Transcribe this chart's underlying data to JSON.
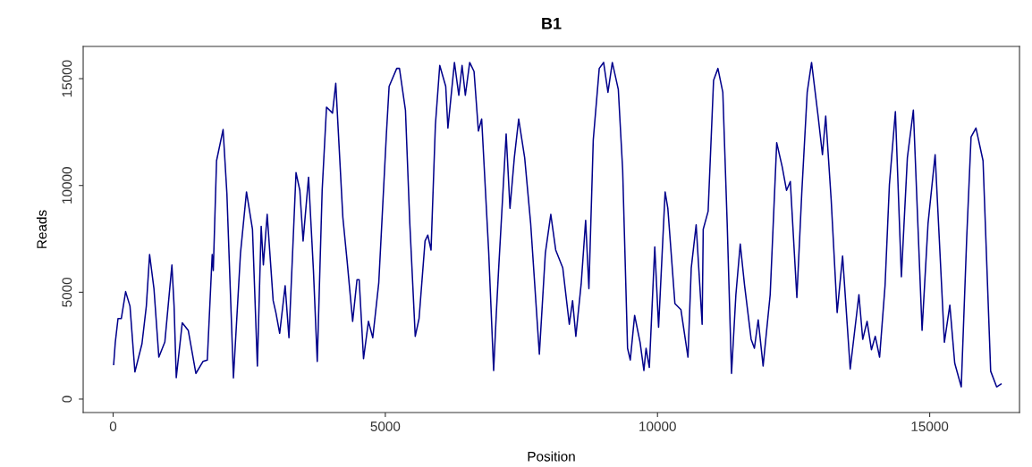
{
  "chart_data": {
    "type": "line",
    "title": "B1",
    "xlabel": "Position",
    "ylabel": "Reads",
    "xlim": [
      -550,
      16650
    ],
    "ylim": [
      -630,
      16510
    ],
    "xticks": [
      0,
      5000,
      10000,
      15000
    ],
    "yticks": [
      0,
      5000,
      10000,
      15000
    ],
    "grid": false,
    "legend": false,
    "marker": "none",
    "line_style": "solid",
    "series": [
      {
        "color": "#00008b",
        "x": [
          10,
          40,
          90,
          150,
          230,
          310,
          400,
          530,
          610,
          670,
          750,
          840,
          950,
          1080,
          1120,
          1160,
          1270,
          1380,
          1520,
          1650,
          1730,
          1820,
          1840,
          1900,
          2020,
          2090,
          2210,
          2340,
          2450,
          2560,
          2650,
          2720,
          2760,
          2830,
          2940,
          2990,
          3060,
          3160,
          3230,
          3360,
          3430,
          3490,
          3590,
          3680,
          3750,
          3840,
          3920,
          4030,
          4090,
          4220,
          4300,
          4400,
          4480,
          4520,
          4600,
          4690,
          4770,
          4880,
          5020,
          5070,
          5210,
          5260,
          5370,
          5450,
          5550,
          5620,
          5730,
          5780,
          5840,
          5920,
          6000,
          6110,
          6150,
          6270,
          6350,
          6410,
          6470,
          6550,
          6630,
          6710,
          6770,
          6900,
          6990,
          7040,
          7080,
          7220,
          7290,
          7370,
          7450,
          7560,
          7670,
          7830,
          7940,
          8040,
          8130,
          8260,
          8380,
          8440,
          8500,
          8600,
          8680,
          8740,
          8820,
          8930,
          9010,
          9090,
          9170,
          9280,
          9360,
          9450,
          9500,
          9580,
          9680,
          9750,
          9790,
          9850,
          9950,
          10020,
          10140,
          10190,
          10320,
          10430,
          10560,
          10620,
          10710,
          10820,
          10840,
          10930,
          11030,
          11110,
          11200,
          11280,
          11360,
          11440,
          11520,
          11600,
          11720,
          11780,
          11850,
          11940,
          12070,
          12190,
          12290,
          12370,
          12440,
          12560,
          12650,
          12750,
          12830,
          12950,
          13030,
          13090,
          13190,
          13300,
          13400,
          13540,
          13700,
          13770,
          13850,
          13930,
          14000,
          14080,
          14180,
          14260,
          14370,
          14480,
          14590,
          14700,
          14860,
          14970,
          15100,
          15270,
          15370,
          15460,
          15580,
          15680,
          15760,
          15850,
          15980,
          16120,
          16230,
          16310
        ],
        "values": [
          1620,
          2660,
          3770,
          3770,
          5030,
          4350,
          1270,
          2590,
          4350,
          6770,
          5180,
          1960,
          2670,
          6280,
          4350,
          1000,
          3570,
          3220,
          1200,
          1760,
          1830,
          6770,
          6020,
          11160,
          12620,
          9630,
          990,
          6840,
          9700,
          7950,
          1550,
          8090,
          6280,
          8650,
          4610,
          4050,
          3080,
          5310,
          2870,
          10600,
          9770,
          7400,
          10390,
          6000,
          1760,
          9770,
          13670,
          13390,
          14780,
          8510,
          6420,
          3640,
          5590,
          5590,
          1890,
          3640,
          2870,
          5450,
          12410,
          14640,
          15480,
          15480,
          13530,
          8230,
          2940,
          3770,
          7400,
          7680,
          6980,
          12830,
          15620,
          14640,
          12690,
          15760,
          14220,
          15620,
          14220,
          15760,
          15340,
          12550,
          13110,
          6840,
          1340,
          4050,
          6000,
          12410,
          8930,
          11300,
          13110,
          11300,
          8230,
          2100,
          6840,
          8650,
          6980,
          6140,
          3500,
          4610,
          2940,
          5450,
          8370,
          5170,
          12130,
          15480,
          15760,
          14360,
          15760,
          14500,
          10740,
          2380,
          1830,
          3920,
          2660,
          1340,
          2380,
          1480,
          7120,
          3360,
          9700,
          8930,
          4470,
          4190,
          1960,
          6140,
          8160,
          3500,
          7950,
          8790,
          14920,
          15480,
          14360,
          8230,
          1200,
          4890,
          7260,
          5310,
          2800,
          2380,
          3710,
          1550,
          4890,
          12000,
          10880,
          9770,
          10190,
          4750,
          9630,
          14360,
          15760,
          13250,
          11440,
          13250,
          9350,
          4050,
          6700,
          1410,
          4890,
          2800,
          3640,
          2310,
          2940,
          1960,
          5310,
          10040,
          13460,
          5730,
          11300,
          13530,
          3220,
          8230,
          11440,
          2660,
          4400,
          1680,
          570,
          7540,
          12270,
          12690,
          11160,
          1310,
          570,
          710
        ]
      }
    ]
  }
}
